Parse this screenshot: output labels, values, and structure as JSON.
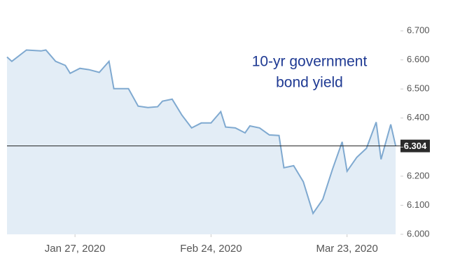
{
  "chart_data": {
    "type": "area",
    "annotation": [
      "10-yr government",
      "bond yield"
    ],
    "x": [
      "2020-01-13",
      "2020-01-14",
      "2020-01-17",
      "2020-01-20",
      "2020-01-21",
      "2020-01-23",
      "2020-01-25",
      "2020-01-26",
      "2020-01-28",
      "2020-01-30",
      "2020-02-01",
      "2020-02-03",
      "2020-02-04",
      "2020-02-07",
      "2020-02-09",
      "2020-02-11",
      "2020-02-13",
      "2020-02-14",
      "2020-02-16",
      "2020-02-18",
      "2020-02-20",
      "2020-02-22",
      "2020-02-24",
      "2020-02-26",
      "2020-02-27",
      "2020-02-29",
      "2020-03-02",
      "2020-03-03",
      "2020-03-05",
      "2020-03-07",
      "2020-03-09",
      "2020-03-10",
      "2020-03-12",
      "2020-03-14",
      "2020-03-16",
      "2020-03-18",
      "2020-03-20",
      "2020-03-22",
      "2020-03-23",
      "2020-03-25",
      "2020-03-27",
      "2020-03-29",
      "2020-03-30",
      "2020-04-01",
      "2020-04-02"
    ],
    "values": [
      6.61,
      6.595,
      6.634,
      6.631,
      6.634,
      6.595,
      6.581,
      6.554,
      6.571,
      6.566,
      6.557,
      6.595,
      6.501,
      6.501,
      6.441,
      6.436,
      6.439,
      6.458,
      6.465,
      6.41,
      6.366,
      6.383,
      6.383,
      6.422,
      6.369,
      6.366,
      6.349,
      6.373,
      6.366,
      6.342,
      6.34,
      6.229,
      6.236,
      6.181,
      6.072,
      6.12,
      6.224,
      6.318,
      6.217,
      6.265,
      6.296,
      6.386,
      6.258,
      6.378,
      6.304
    ],
    "color": "#7fa9d0",
    "fill": "#e3edf6",
    "xlim": [
      "2020-01-13",
      "2020-04-03"
    ],
    "xticks": [
      {
        "value": "2020-01-27",
        "label": "Jan 27, 2020"
      },
      {
        "value": "2020-02-24",
        "label": "Feb 24, 2020"
      },
      {
        "value": "2020-03-23",
        "label": "Mar 23, 2020"
      }
    ],
    "ylim": [
      6.0,
      6.77
    ],
    "yticks": [
      {
        "value": 6.0,
        "label": "6.000"
      },
      {
        "value": 6.1,
        "label": "6.100"
      },
      {
        "value": 6.2,
        "label": "6.200"
      },
      {
        "value": 6.3,
        "label": "6.300"
      },
      {
        "value": 6.4,
        "label": "6.400"
      },
      {
        "value": 6.5,
        "label": "6.500"
      },
      {
        "value": 6.6,
        "label": "6.600"
      },
      {
        "value": 6.7,
        "label": "6.700"
      }
    ],
    "axis_position": "right"
  }
}
